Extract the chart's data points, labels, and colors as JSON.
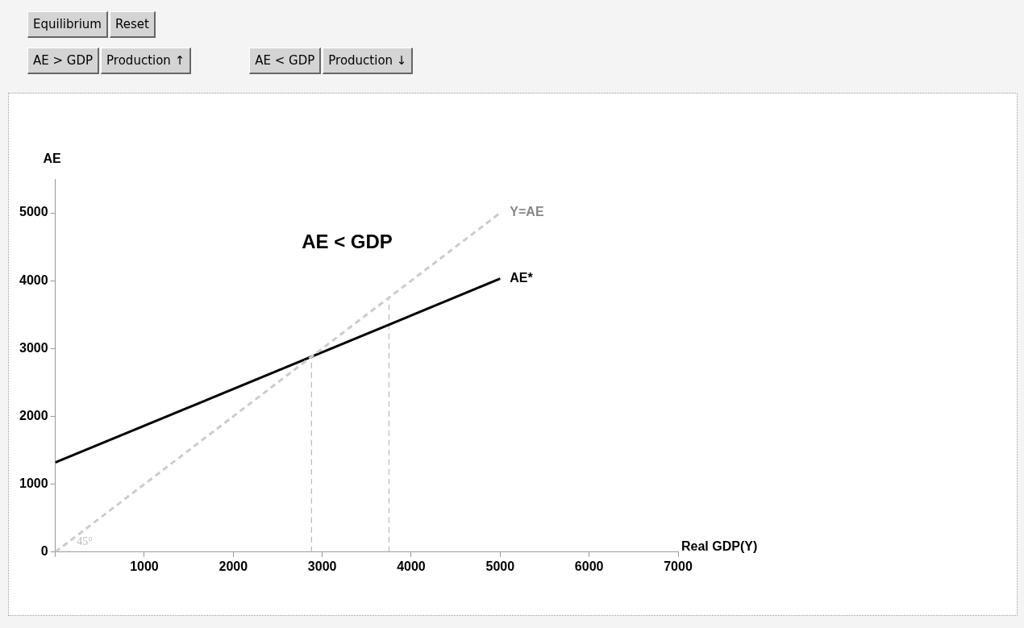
{
  "chart_data": {
    "type": "line",
    "xlabel": "Real GDP(Y)",
    "ylabel": "AE",
    "xlim": [
      0,
      7000
    ],
    "xticks": [
      {
        "value": 0,
        "label": null
      },
      1000,
      2000,
      3000,
      4000,
      5000,
      6000,
      7000
    ],
    "ylim": [
      0,
      5500
    ],
    "yticks": [
      0,
      1000,
      2000,
      3000,
      4000,
      5000
    ],
    "series": [
      {
        "name": "Y=AE",
        "color": "#cccccc",
        "line_style": "dashed",
        "x": [
          0,
          5000
        ],
        "values": [
          0,
          5000
        ]
      },
      {
        "name": "AE*",
        "color": "#000000",
        "line_style": "solid",
        "x": [
          0,
          5000
        ],
        "values": [
          1320,
          4030
        ]
      },
      {
        "color": "#bbbbbb",
        "line_style": "dashed",
        "x": [
          2880,
          2880
        ],
        "values": [
          0,
          2880
        ]
      },
      {
        "color": "#bbbbbb",
        "line_style": "dashed",
        "x": [
          3750,
          3750
        ],
        "values": [
          0,
          3750
        ]
      }
    ],
    "annotations": [
      "Equilibrium",
      "Reset",
      "AE > GDP",
      "Production ↑",
      "AE < GDP",
      "Production ↓",
      "AE < GDP",
      "45°"
    ],
    "grid": false,
    "legend": false,
    "marker": "none"
  }
}
